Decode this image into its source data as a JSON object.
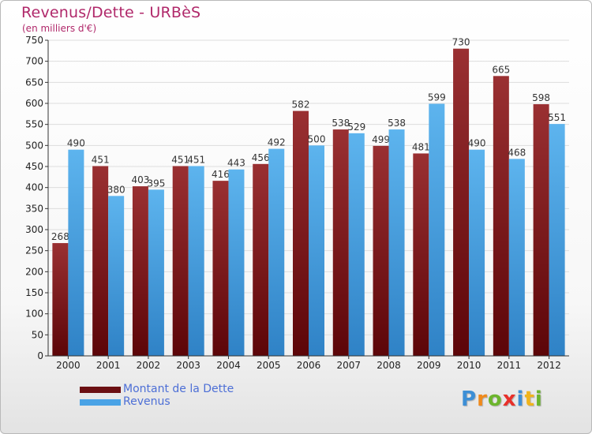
{
  "title": "Revenus/Dette - URBèS",
  "subtitle": "(en milliers d'€)",
  "legend": {
    "items": [
      {
        "label": "Montant de la Dette",
        "color": "#6b0f12"
      },
      {
        "label": "Revenus",
        "color": "#4aa3e6"
      }
    ]
  },
  "logo": {
    "text": "Proxiti",
    "letters": [
      {
        "ch": "P",
        "color": "#3d8fd6"
      },
      {
        "ch": "r",
        "color": "#f08a1c"
      },
      {
        "ch": "o",
        "color": "#6cb52d"
      },
      {
        "ch": "x",
        "color": "#e8302a"
      },
      {
        "ch": "i",
        "color": "#3d8fd6"
      },
      {
        "ch": "t",
        "color": "#f0b41c"
      },
      {
        "ch": "i",
        "color": "#6cb52d"
      }
    ]
  },
  "colors": {
    "title": "#b0286a",
    "debt_bar_top": "#9a3032",
    "debt_bar_bottom": "#5c0508",
    "revenue_bar_top": "#5db4ee",
    "revenue_bar_bottom": "#2f82c6",
    "axis": "#333333",
    "grid": "#dddddd"
  },
  "chart_data": {
    "type": "bar",
    "categories": [
      "2000",
      "2001",
      "2002",
      "2003",
      "2004",
      "2005",
      "2006",
      "2007",
      "2008",
      "2009",
      "2010",
      "2011",
      "2012"
    ],
    "series": [
      {
        "name": "Montant de la Dette",
        "values": [
          268,
          451,
          403,
          451,
          416,
          456,
          582,
          538,
          499,
          481,
          730,
          665,
          598
        ]
      },
      {
        "name": "Revenus",
        "values": [
          490,
          380,
          395,
          451,
          443,
          492,
          500,
          529,
          538,
          599,
          490,
          468,
          551
        ]
      }
    ],
    "ylim": [
      0,
      750
    ],
    "yticks": [
      0,
      50,
      100,
      150,
      200,
      250,
      300,
      350,
      400,
      450,
      500,
      550,
      600,
      650,
      700,
      750
    ],
    "grid": true,
    "legend_position": "bottom-left"
  }
}
